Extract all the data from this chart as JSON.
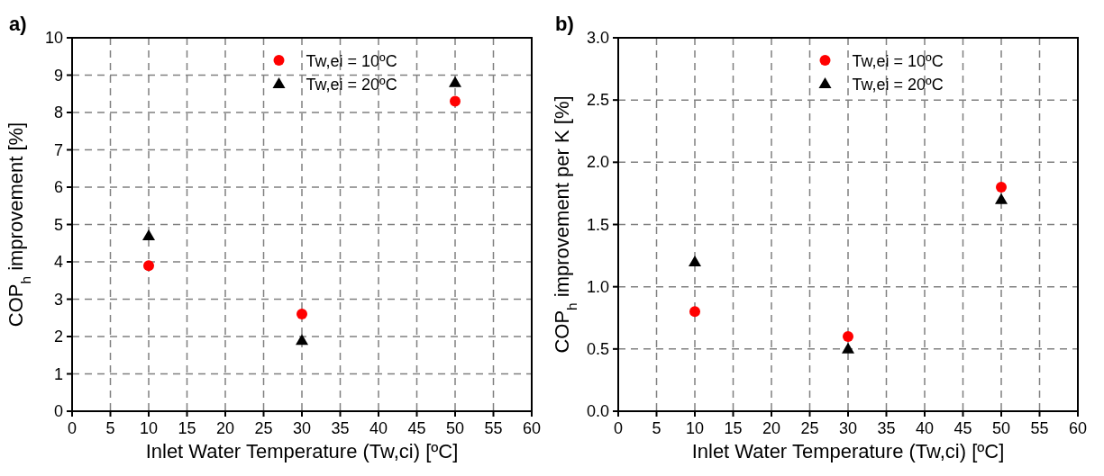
{
  "chart_data": [
    {
      "type": "scatter",
      "title": "a)",
      "xlabel": "Inlet Water Temperature (Tw,ci) [ºC]",
      "ylabel": "COP$_{h}$ improvement [%]",
      "x": [
        10,
        30,
        50
      ],
      "xlim": [
        0,
        60
      ],
      "xticks": [
        0,
        5,
        10,
        15,
        20,
        25,
        30,
        35,
        40,
        45,
        50,
        55,
        60
      ],
      "ylim": [
        0,
        10
      ],
      "yticks": [
        0,
        1,
        2,
        3,
        4,
        5,
        6,
        7,
        8,
        9,
        10
      ],
      "grid": true,
      "legend": "top",
      "series": [
        {
          "name": "Tw,ei = 10ºC",
          "color": "#ff0000",
          "marker": "circle",
          "values": [
            3.9,
            2.6,
            8.3
          ]
        },
        {
          "name": "Tw,ei = 20ºC",
          "color": "#000000",
          "marker": "triangle",
          "values": [
            4.7,
            1.9,
            8.8
          ]
        }
      ]
    },
    {
      "type": "scatter",
      "title": "b)",
      "xlabel": "Inlet Water Temperature (Tw,ci) [ºC]",
      "ylabel": "COP$_{h}$ improvement per K [%]",
      "x": [
        10,
        30,
        50
      ],
      "xlim": [
        0,
        60
      ],
      "xticks": [
        0,
        5,
        10,
        15,
        20,
        25,
        30,
        35,
        40,
        45,
        50,
        55,
        60
      ],
      "ylim": [
        0,
        3
      ],
      "yticks": [
        {
          "value": 0,
          "label": "0.0"
        },
        {
          "value": 0.5,
          "label": "0.5"
        },
        {
          "value": 1,
          "label": "1.0"
        },
        {
          "value": 1.5,
          "label": "1.5"
        },
        {
          "value": 2,
          "label": "2.0"
        },
        {
          "value": 2.5,
          "label": "2.5"
        },
        {
          "value": 3,
          "label": "3.0"
        }
      ],
      "grid": true,
      "legend": "top",
      "series": [
        {
          "name": "Tw,ei = 10ºC",
          "color": "#ff0000",
          "marker": "circle",
          "values": [
            0.8,
            0.6,
            1.8
          ]
        },
        {
          "name": "Tw,ei = 20ºC",
          "color": "#000000",
          "marker": "triangle",
          "values": [
            1.2,
            0.5,
            1.7
          ]
        }
      ]
    }
  ]
}
